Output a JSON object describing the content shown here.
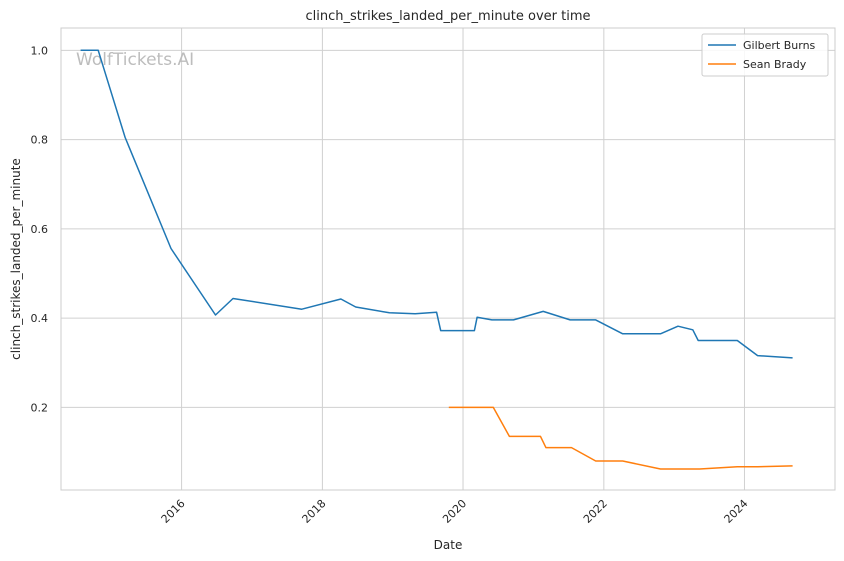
{
  "watermark": "WolfTickets.AI",
  "chart_data": {
    "type": "line",
    "title": "clinch_strikes_landed_per_minute over time",
    "xlabel": "Date",
    "ylabel": "clinch_strikes_landed_per_minute",
    "xlim": [
      "2014-04-15",
      "2025-04-15"
    ],
    "ylim": [
      0.015,
      1.05
    ],
    "x_ticks": [
      "2016",
      "2018",
      "2020",
      "2022",
      "2024"
    ],
    "y_ticks": [
      "0.2",
      "0.4",
      "0.6",
      "0.8",
      "1.0"
    ],
    "grid": true,
    "legend_position": "top-right",
    "series": [
      {
        "name": "Gilbert Burns",
        "color": "#1f77b4",
        "points": [
          [
            "2014-07-26",
            1.0
          ],
          [
            "2014-10-25",
            1.0
          ],
          [
            "2015-03-14",
            0.805
          ],
          [
            "2015-11-07",
            0.556
          ],
          [
            "2016-06-25",
            0.407
          ],
          [
            "2016-09-24",
            0.444
          ],
          [
            "2017-09-16",
            0.42
          ],
          [
            "2018-04-07",
            0.443
          ],
          [
            "2018-06-23",
            0.425
          ],
          [
            "2018-12-15",
            0.412
          ],
          [
            "2019-04-27",
            0.41
          ],
          [
            "2019-08-17",
            0.413
          ],
          [
            "2019-09-07",
            0.372
          ],
          [
            "2020-02-29",
            0.372
          ],
          [
            "2020-03-14",
            0.402
          ],
          [
            "2020-05-30",
            0.396
          ],
          [
            "2020-09-19",
            0.396
          ],
          [
            "2021-02-20",
            0.415
          ],
          [
            "2021-07-10",
            0.396
          ],
          [
            "2021-11-20",
            0.396
          ],
          [
            "2022-04-09",
            0.365
          ],
          [
            "2022-10-22",
            0.365
          ],
          [
            "2023-01-21",
            0.382
          ],
          [
            "2023-04-08",
            0.374
          ],
          [
            "2023-05-06",
            0.35
          ],
          [
            "2023-11-25",
            0.35
          ],
          [
            "2024-03-09",
            0.316
          ],
          [
            "2024-09-07",
            0.311
          ]
        ]
      },
      {
        "name": "Sean Brady",
        "color": "#ff7f0e",
        "points": [
          [
            "2019-10-19",
            0.2
          ],
          [
            "2020-06-06",
            0.2
          ],
          [
            "2020-08-29",
            0.135
          ],
          [
            "2021-02-06",
            0.135
          ],
          [
            "2021-03-06",
            0.11
          ],
          [
            "2021-07-17",
            0.11
          ],
          [
            "2021-11-20",
            0.08
          ],
          [
            "2022-04-09",
            0.08
          ],
          [
            "2022-10-22",
            0.062
          ],
          [
            "2023-05-13",
            0.062
          ],
          [
            "2023-11-25",
            0.067
          ],
          [
            "2024-03-09",
            0.067
          ],
          [
            "2024-09-07",
            0.069
          ]
        ]
      }
    ]
  }
}
